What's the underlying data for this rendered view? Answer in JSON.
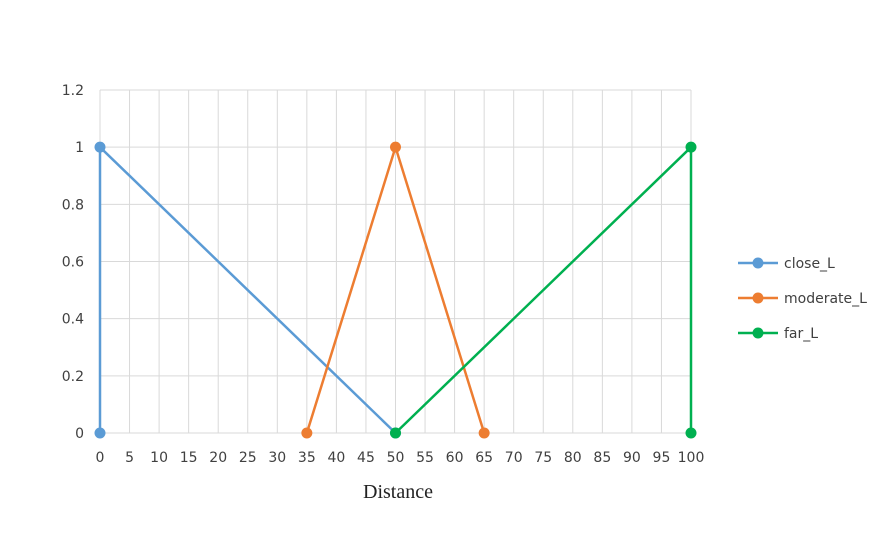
{
  "chart_data": {
    "type": "line",
    "title": "",
    "xlabel": "Distance",
    "ylabel": "",
    "xlim": [
      0,
      100
    ],
    "ylim": [
      0,
      1.2
    ],
    "x_ticks": [
      "0",
      "5",
      "10",
      "15",
      "20",
      "25",
      "30",
      "35",
      "40",
      "45",
      "50",
      "55",
      "60",
      "65",
      "70",
      "75",
      "80",
      "85",
      "90",
      "95",
      "100"
    ],
    "y_ticks": [
      "0",
      "0.2",
      "0.4",
      "0.6",
      "0.8",
      "1",
      "1.2"
    ],
    "grid": true,
    "legend_position": "right",
    "series": [
      {
        "name": "close_L",
        "color": "#5B9BD5",
        "points": [
          [
            0,
            0
          ],
          [
            0,
            1
          ],
          [
            50,
            0
          ]
        ]
      },
      {
        "name": "moderate_L",
        "color": "#ED7D31",
        "points": [
          [
            35,
            0
          ],
          [
            50,
            1
          ],
          [
            65,
            0
          ]
        ]
      },
      {
        "name": "far_L",
        "color": "#00B050",
        "points": [
          [
            50,
            0
          ],
          [
            100,
            1
          ],
          [
            100,
            0
          ]
        ]
      }
    ]
  }
}
